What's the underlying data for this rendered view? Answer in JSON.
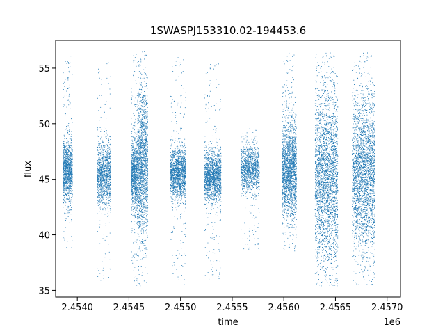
{
  "chart_data": {
    "type": "scatter",
    "title": "1SWASPJ153310.02-194453.6",
    "xlabel": "time",
    "ylabel": "flux",
    "x_offset_label": "1e6",
    "xlim": [
      2453790,
      2457130
    ],
    "ylim": [
      34.4,
      57.5
    ],
    "x_ticks": [
      2.454,
      2.4545,
      2.455,
      2.4555,
      2.456,
      2.4565,
      2.457
    ],
    "x_tick_labels": [
      "2.4540",
      "2.4545",
      "2.4550",
      "2.4555",
      "2.4560",
      "2.4565",
      "2.4570"
    ],
    "y_ticks": [
      35,
      40,
      45,
      50,
      55
    ],
    "y_tick_labels": [
      "35",
      "40",
      "45",
      "50",
      "55"
    ],
    "grid": false,
    "point_color": "#1f77b4",
    "clusters": [
      {
        "start": 2453860,
        "end": 2453950,
        "center": 45.8,
        "spread": 1.3,
        "min": 38.8,
        "max": 56.2,
        "density": 1300
      },
      {
        "start": 2454190,
        "end": 2454320,
        "center": 45.5,
        "spread": 1.4,
        "min": 35.9,
        "max": 55.8,
        "density": 1300
      },
      {
        "start": 2454520,
        "end": 2454580,
        "center": 45.5,
        "spread": 1.6,
        "min": 35.4,
        "max": 56.5,
        "density": 1000
      },
      {
        "start": 2454580,
        "end": 2454680,
        "center": 46.5,
        "spread": 3.2,
        "min": 35.4,
        "max": 56.5,
        "density": 1800
      },
      {
        "start": 2454900,
        "end": 2455050,
        "center": 45.5,
        "spread": 1.1,
        "min": 35.5,
        "max": 56.0,
        "density": 1700
      },
      {
        "start": 2455230,
        "end": 2455390,
        "center": 45.3,
        "spread": 1.1,
        "min": 36.0,
        "max": 55.7,
        "density": 1700
      },
      {
        "start": 2455580,
        "end": 2455760,
        "center": 46.0,
        "spread": 1.0,
        "min": 38.2,
        "max": 49.6,
        "density": 1300
      },
      {
        "start": 2455980,
        "end": 2456120,
        "center": 45.8,
        "spread": 2.1,
        "min": 38.5,
        "max": 56.4,
        "density": 2200
      },
      {
        "start": 2456300,
        "end": 2456520,
        "center": 45.2,
        "spread": 3.8,
        "min": 35.4,
        "max": 56.4,
        "density": 3600
      },
      {
        "start": 2456660,
        "end": 2456880,
        "center": 45.6,
        "spread": 3.3,
        "min": 35.5,
        "max": 56.4,
        "density": 3400
      }
    ]
  }
}
